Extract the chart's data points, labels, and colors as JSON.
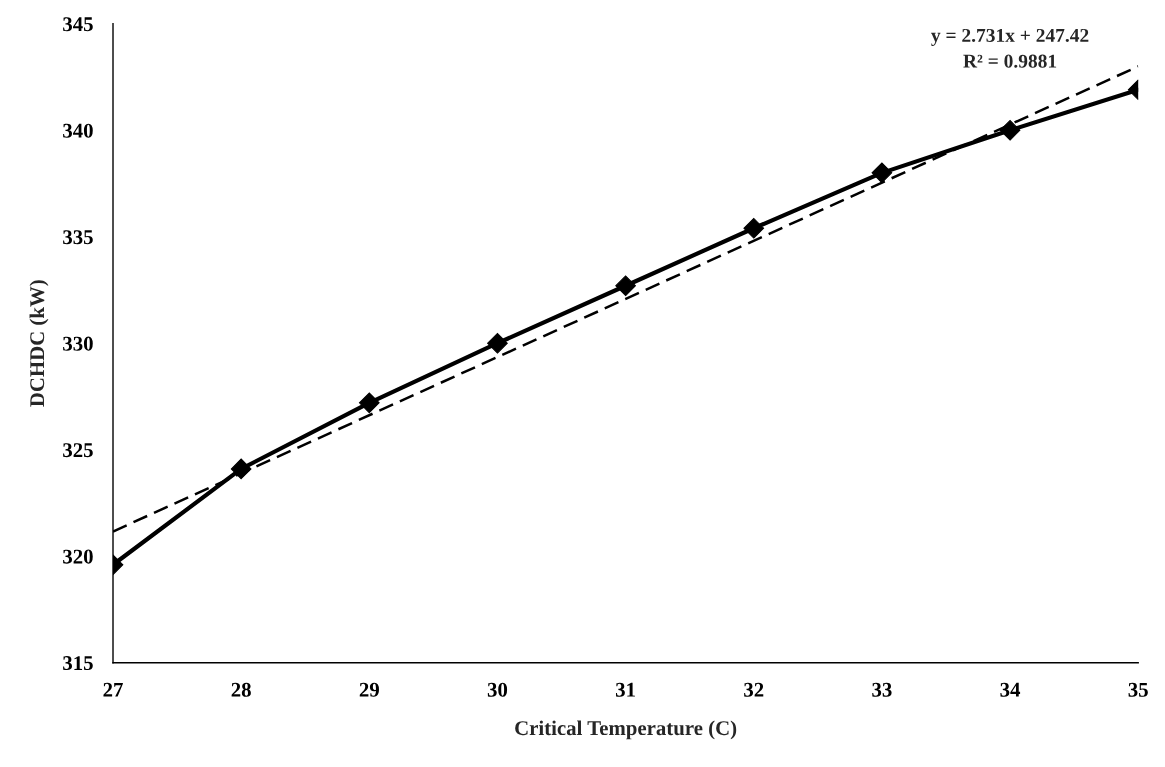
{
  "chart_data": {
    "type": "line",
    "xlabel": "Critical Temperature (C)",
    "ylabel": "DCHDC (kW)",
    "x": [
      27,
      28,
      29,
      30,
      31,
      32,
      33,
      34,
      35
    ],
    "series": [
      {
        "color": "#000000",
        "marker": "diamond",
        "line_style": "solid",
        "values": [
          319.6,
          324.1,
          327.2,
          330.0,
          332.7,
          335.4,
          338.0,
          340.0,
          341.9
        ]
      },
      {
        "color": "#000000",
        "marker": "none",
        "line_style": "dashed",
        "x": [
          27,
          35
        ],
        "values": [
          321.16,
          343.0
        ]
      }
    ],
    "annotations": [
      "y = 2.731x + 247.42\nR² = 0.9881"
    ],
    "xlim": [
      27,
      35
    ],
    "xticks": [
      27,
      28,
      29,
      30,
      31,
      32,
      33,
      34,
      35
    ],
    "ylim": [
      315,
      345
    ],
    "yticks": [
      315,
      320,
      325,
      330,
      335,
      340,
      345
    ],
    "grid": false
  }
}
